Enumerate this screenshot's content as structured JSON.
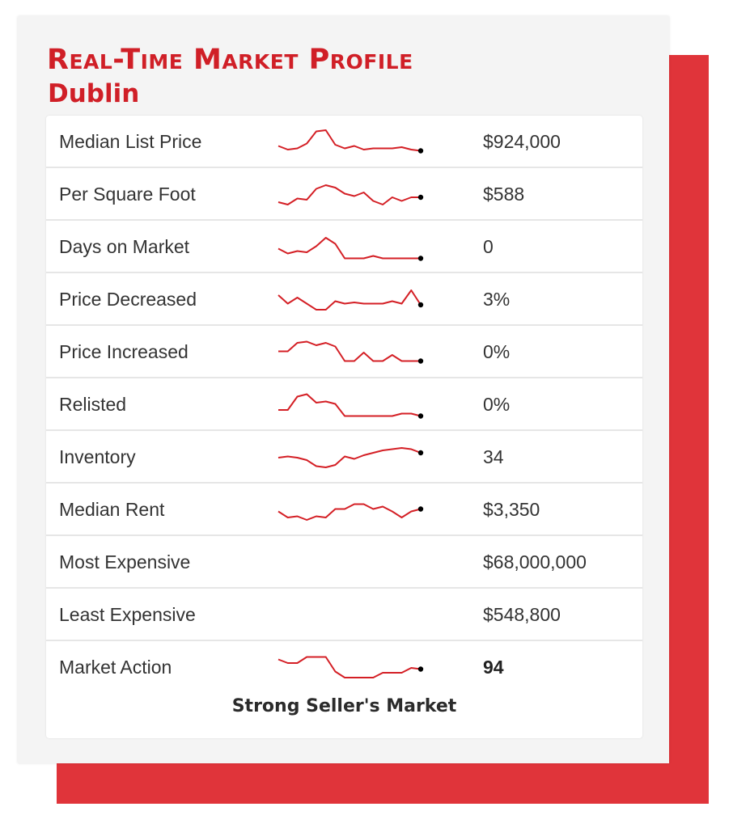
{
  "profile": {
    "title": "Real-Time Market Profile",
    "location": "Dublin",
    "accent_color": "#d01f27",
    "shadow_color": "#e0343a",
    "sparkline_color": "#d41f25",
    "rows": [
      {
        "label": "Median List Price",
        "value": "$924,000",
        "trend": [
          0.35,
          0.2,
          0.25,
          0.45,
          0.95,
          1.0,
          0.4,
          0.25,
          0.35,
          0.2,
          0.25,
          0.25,
          0.25,
          0.3,
          0.2,
          0.15
        ]
      },
      {
        "label": "Per Square Foot",
        "value": "$588",
        "trend": [
          0.2,
          0.1,
          0.35,
          0.3,
          0.75,
          0.9,
          0.8,
          0.55,
          0.45,
          0.6,
          0.25,
          0.1,
          0.4,
          0.25,
          0.4,
          0.4
        ]
      },
      {
        "label": "Days on Market",
        "value": "0",
        "trend": [
          0.45,
          0.25,
          0.35,
          0.3,
          0.55,
          0.9,
          0.65,
          0.05,
          0.05,
          0.05,
          0.15,
          0.05,
          0.05,
          0.05,
          0.05,
          0.05
        ]
      },
      {
        "label": "Price Decreased",
        "value": "3%",
        "trend": [
          0.7,
          0.35,
          0.6,
          0.35,
          0.1,
          0.1,
          0.45,
          0.35,
          0.4,
          0.35,
          0.35,
          0.35,
          0.45,
          0.35,
          0.9,
          0.3
        ]
      },
      {
        "label": "Price Increased",
        "value": "0%",
        "trend": [
          0.55,
          0.55,
          0.9,
          0.95,
          0.8,
          0.9,
          0.75,
          0.15,
          0.15,
          0.5,
          0.15,
          0.15,
          0.4,
          0.15,
          0.15,
          0.15
        ]
      },
      {
        "label": "Relisted",
        "value": "0%",
        "trend": [
          0.3,
          0.3,
          0.85,
          0.95,
          0.6,
          0.65,
          0.55,
          0.05,
          0.05,
          0.05,
          0.05,
          0.05,
          0.05,
          0.15,
          0.15,
          0.05
        ]
      },
      {
        "label": "Inventory",
        "value": "34",
        "trend": [
          0.5,
          0.55,
          0.5,
          0.4,
          0.15,
          0.1,
          0.2,
          0.55,
          0.45,
          0.6,
          0.7,
          0.8,
          0.85,
          0.9,
          0.85,
          0.7
        ]
      },
      {
        "label": "Median Rent",
        "value": "$3,350",
        "trend": [
          0.45,
          0.2,
          0.25,
          0.1,
          0.25,
          0.2,
          0.55,
          0.55,
          0.75,
          0.75,
          0.55,
          0.65,
          0.45,
          0.2,
          0.45,
          0.55
        ]
      },
      {
        "label": "Most Expensive",
        "value": "$68,000,000",
        "trend": []
      },
      {
        "label": "Least Expensive",
        "value": "$548,800",
        "trend": []
      },
      {
        "label": "Market Action",
        "value": "94",
        "trend": [
          0.85,
          0.7,
          0.7,
          0.95,
          0.95,
          0.95,
          0.35,
          0.1,
          0.1,
          0.1,
          0.1,
          0.3,
          0.3,
          0.3,
          0.5,
          0.45
        ]
      }
    ],
    "market_verdict": "Strong Seller's Market"
  }
}
